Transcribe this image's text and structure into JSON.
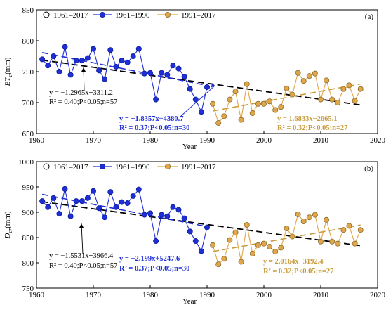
{
  "legend": {
    "all": "1961–2017",
    "early": "1961–1990",
    "late": "1991–2017"
  },
  "colors": {
    "all": "#000000",
    "early": "#1f2fd6",
    "late": "#e0a64b",
    "late_line": "#c99a3a"
  },
  "chart_data": [
    {
      "type": "line",
      "panel_label": "(a)",
      "ylabel_main": "ET",
      "ylabel_sub": "c",
      "ylabel_unit": "(mm)",
      "xlabel": "Year",
      "xlim": [
        1960,
        2020
      ],
      "ylim": [
        650,
        850
      ],
      "xticks": [
        1960,
        1970,
        1980,
        1990,
        2000,
        2010,
        2020
      ],
      "yticks": [
        650,
        700,
        750,
        800,
        850
      ],
      "series": [
        {
          "name": "1961–1990",
          "x": [
            1961,
            1962,
            1963,
            1964,
            1965,
            1966,
            1967,
            1968,
            1969,
            1970,
            1971,
            1972,
            1973,
            1974,
            1975,
            1976,
            1977,
            1978,
            1979,
            1980,
            1981,
            1982,
            1983,
            1984,
            1985,
            1986,
            1987,
            1988,
            1989,
            1990
          ],
          "values": [
            770,
            760,
            775,
            750,
            790,
            745,
            768,
            768,
            772,
            787,
            752,
            738,
            785,
            758,
            768,
            765,
            775,
            787,
            747,
            748,
            705,
            748,
            745,
            760,
            755,
            742,
            722,
            705,
            685,
            725
          ]
        },
        {
          "name": "1991–2017",
          "x": [
            1991,
            1992,
            1993,
            1994,
            1995,
            1996,
            1997,
            1998,
            1999,
            2000,
            2001,
            2002,
            2003,
            2004,
            2005,
            2006,
            2007,
            2008,
            2009,
            2010,
            2011,
            2012,
            2013,
            2014,
            2015,
            2016,
            2017
          ],
          "values": [
            698,
            667,
            678,
            705,
            718,
            672,
            730,
            683,
            698,
            698,
            702,
            688,
            693,
            723,
            713,
            748,
            735,
            743,
            747,
            705,
            736,
            705,
            700,
            722,
            728,
            703,
            722
          ]
        }
      ],
      "trends": [
        {
          "name": "1961–2017",
          "slope": -1.2965,
          "intercept": 3311.2,
          "x_range": [
            1961,
            2017
          ]
        },
        {
          "name": "1961–1990",
          "slope": -1.8357,
          "intercept": 4380.7,
          "x_range": [
            1961,
            1990
          ]
        },
        {
          "name": "1991–2017",
          "slope": 1.6833,
          "intercept": -2665.1,
          "x_range": [
            1991,
            2017
          ]
        }
      ],
      "annotations": {
        "all_eq": "y = −1.2965x+3311.2",
        "all_stats": "R² = 0.40;P<0.05;n=57",
        "early_eq": "y = −1.8357x+4380.7",
        "early_stats": "R² = 0.37;P<0.05;n=30",
        "late_eq": "y = 1.6833x−2665.1",
        "late_stats": "R² = 0.32;P<0.05;n=27"
      }
    },
    {
      "type": "line",
      "panel_label": "(b)",
      "ylabel_main": "D",
      "ylabel_sub": "cr",
      "ylabel_unit": "(mm)",
      "xlabel": "Year",
      "xlim": [
        1960,
        2020
      ],
      "ylim": [
        750,
        1000
      ],
      "xticks": [
        1960,
        1970,
        1980,
        1990,
        2000,
        2010,
        2020
      ],
      "yticks": [
        750,
        800,
        850,
        900,
        950,
        1000
      ],
      "series": [
        {
          "name": "1961–1990",
          "x": [
            1961,
            1962,
            1963,
            1964,
            1965,
            1966,
            1967,
            1968,
            1969,
            1970,
            1971,
            1972,
            1973,
            1974,
            1975,
            1976,
            1977,
            1978,
            1979,
            1980,
            1981,
            1982,
            1983,
            1984,
            1985,
            1986,
            1987,
            1988,
            1989,
            1990
          ],
          "values": [
            922,
            910,
            928,
            897,
            946,
            892,
            922,
            922,
            928,
            942,
            908,
            890,
            940,
            910,
            920,
            918,
            932,
            945,
            895,
            898,
            843,
            895,
            892,
            910,
            905,
            888,
            862,
            843,
            823,
            870
          ]
        },
        {
          "name": "1991–2017",
          "x": [
            1991,
            1992,
            1993,
            1994,
            1995,
            1996,
            1997,
            1998,
            1999,
            2000,
            2001,
            2002,
            2003,
            2004,
            2005,
            2006,
            2007,
            2008,
            2009,
            2010,
            2011,
            2012,
            2013,
            2014,
            2015,
            2016,
            2017
          ],
          "values": [
            835,
            797,
            808,
            845,
            860,
            802,
            875,
            818,
            835,
            838,
            832,
            822,
            830,
            868,
            852,
            896,
            882,
            890,
            895,
            842,
            885,
            842,
            838,
            865,
            873,
            838,
            865
          ]
        }
      ],
      "trends": [
        {
          "name": "1961–2017",
          "slope": -1.5531,
          "intercept": 3966.4,
          "x_range": [
            1961,
            2017
          ]
        },
        {
          "name": "1961–1990",
          "slope": -2.199,
          "intercept": 5247.6,
          "x_range": [
            1961,
            1990
          ]
        },
        {
          "name": "1991–2017",
          "slope": 2.0164,
          "intercept": -3192.4,
          "x_range": [
            1991,
            2017
          ]
        }
      ],
      "annotations": {
        "all_eq": "y = −1.5531x+3966.4",
        "all_stats": "R² = 0.40;P<0.05;n=57",
        "early_eq": "y = −2.199x+5247.6",
        "early_stats": "R² = 0.37;P<0.05;n=30",
        "late_eq": "y = 2.0164x−3192.4",
        "late_stats": "R² = 0.32;P<0.05;n=27"
      }
    }
  ]
}
